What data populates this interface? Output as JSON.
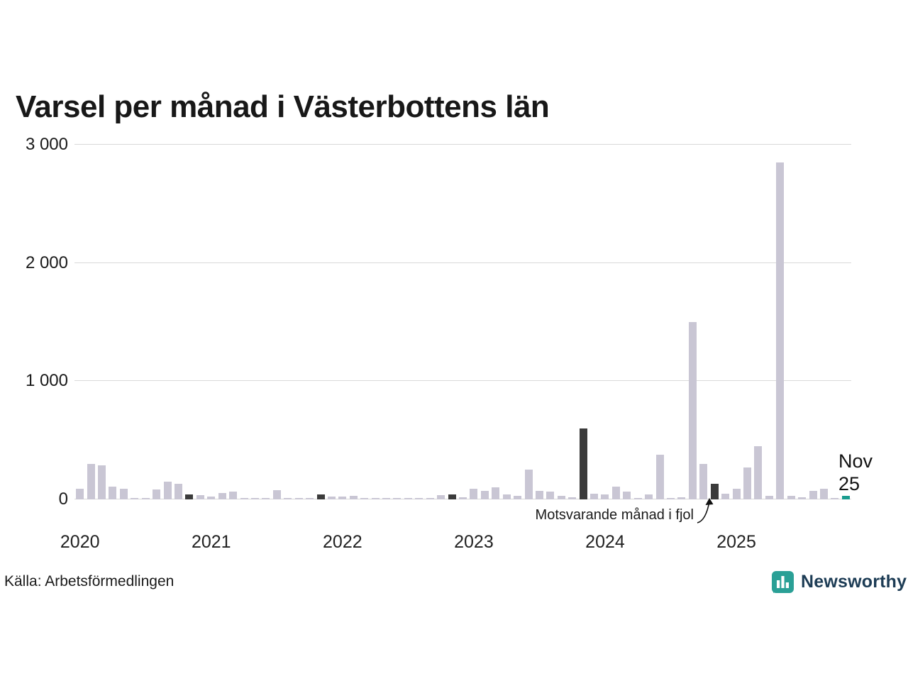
{
  "chart_data": {
    "type": "bar",
    "title": "Varsel per månad i Västerbottens län",
    "ylim": [
      0,
      3000
    ],
    "y_ticks": [
      0,
      1000,
      2000,
      3000
    ],
    "y_tick_labels": [
      "0",
      "1 000",
      "2 000",
      "3 000"
    ],
    "years": [
      "2020",
      "2021",
      "2022",
      "2023",
      "2024",
      "2025"
    ],
    "months_start": "2020-01",
    "months_end": "2025-11",
    "values": [
      90,
      300,
      290,
      110,
      90,
      10,
      5,
      85,
      150,
      130,
      45,
      35,
      25,
      55,
      65,
      15,
      10,
      5,
      80,
      5,
      10,
      15,
      40,
      25,
      25,
      30,
      10,
      5,
      10,
      5,
      5,
      10,
      5,
      35,
      40,
      20,
      90,
      75,
      100,
      40,
      30,
      250,
      70,
      65,
      30,
      20,
      600,
      50,
      40,
      110,
      65,
      10,
      45,
      380,
      10,
      20,
      1500,
      300,
      130,
      50,
      90,
      270,
      450,
      30,
      2850,
      30,
      20,
      75,
      90,
      10,
      30
    ],
    "dark_highlight_indices": [
      10,
      22,
      34,
      46,
      58
    ],
    "annotation": {
      "label": "Motsvarande månad i fjol",
      "target_index": 58
    },
    "current": {
      "index": 70,
      "label_line1": "Nov",
      "label_line2": "25"
    },
    "colors": {
      "bar_default": "#c9c6d4",
      "bar_dark": "#3b3b3b",
      "bar_current": "#1a9c8f",
      "gridline": "#d9d9d9"
    },
    "legend": "off",
    "grid": "horizontal"
  },
  "footer": {
    "source": "Källa: Arbetsförmedlingen",
    "brand": "Newsworthy",
    "brand_text_color": "#1d3c55",
    "logo_color": "#2aa096"
  }
}
